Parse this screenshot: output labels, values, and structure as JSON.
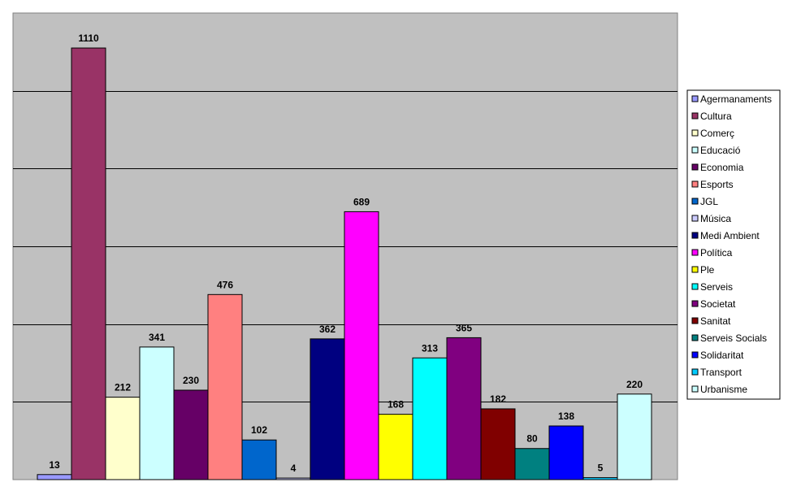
{
  "chart_data": {
    "type": "bar",
    "title": "",
    "xlabel": "",
    "ylabel": "",
    "ylim": [
      0,
      1200
    ],
    "grid": true,
    "legend_position": "right",
    "plot_background": "#c0c0c0",
    "series": [
      {
        "name": "Agermanaments",
        "value": 13,
        "color": "#9999ff"
      },
      {
        "name": "Cultura",
        "value": 1110,
        "color": "#993366"
      },
      {
        "name": "Comerç",
        "value": 212,
        "color": "#ffffcc"
      },
      {
        "name": "Educació",
        "value": 341,
        "color": "#ccffff"
      },
      {
        "name": "Economia",
        "value": 230,
        "color": "#660066"
      },
      {
        "name": "Esports",
        "value": 476,
        "color": "#ff8080"
      },
      {
        "name": "JGL",
        "value": 102,
        "color": "#0066cc"
      },
      {
        "name": "Música",
        "value": 4,
        "color": "#ccccff"
      },
      {
        "name": "Medi Ambient",
        "value": 362,
        "color": "#000080"
      },
      {
        "name": "Política",
        "value": 689,
        "color": "#ff00ff"
      },
      {
        "name": "Ple",
        "value": 168,
        "color": "#ffff00"
      },
      {
        "name": "Serveis",
        "value": 313,
        "color": "#00ffff"
      },
      {
        "name": "Societat",
        "value": 365,
        "color": "#800080"
      },
      {
        "name": "Sanitat",
        "value": 182,
        "color": "#800000"
      },
      {
        "name": "Serveis Socials",
        "value": 80,
        "color": "#008080"
      },
      {
        "name": "Solidaritat",
        "value": 138,
        "color": "#0000ff"
      },
      {
        "name": "Transport",
        "value": 5,
        "color": "#00ccff"
      },
      {
        "name": "Urbanisme",
        "value": 220,
        "color": "#ccffff"
      }
    ]
  }
}
